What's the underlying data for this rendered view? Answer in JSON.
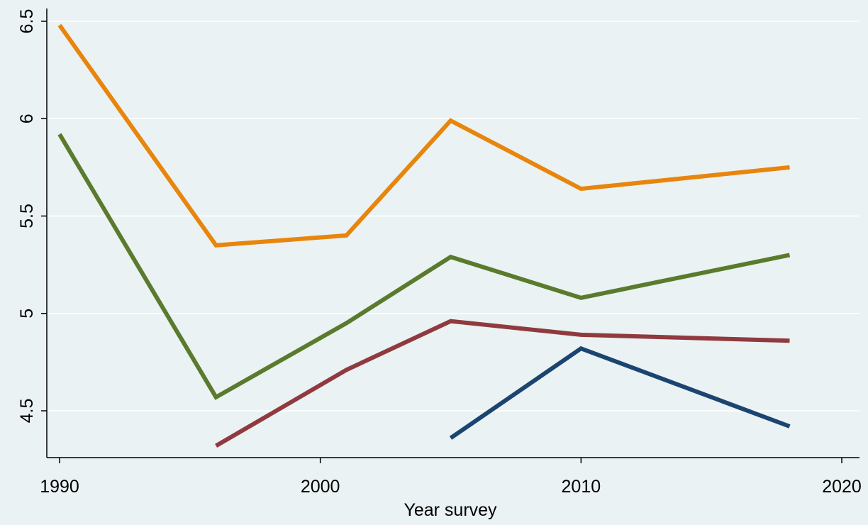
{
  "chart_data": {
    "type": "line",
    "title": "",
    "xlabel": "Year survey",
    "ylabel": "",
    "xlim": [
      1990,
      2020
    ],
    "ylim": [
      4.3,
      6.55
    ],
    "x_ticks": [
      1990,
      2000,
      2010,
      2020
    ],
    "y_ticks": [
      4.5,
      5,
      5.5,
      6,
      6.5
    ],
    "x_tick_labels": [
      "1990",
      "2000",
      "2010",
      "2020"
    ],
    "y_tick_labels": [
      "4.5",
      "5",
      "5.5",
      "6",
      "6.5"
    ],
    "grid": "horizontal",
    "legend": "none",
    "series": [
      {
        "color": "#e8850c",
        "x": [
          1990,
          1996,
          2001,
          2005,
          2010,
          2018
        ],
        "y": [
          6.48,
          5.35,
          5.4,
          5.99,
          5.64,
          5.75
        ]
      },
      {
        "color": "#5a7a2d",
        "x": [
          1990,
          1996,
          2001,
          2005,
          2010,
          2018
        ],
        "y": [
          5.92,
          4.57,
          4.95,
          5.29,
          5.08,
          5.3
        ]
      },
      {
        "color": "#903a3f",
        "x": [
          1996,
          2001,
          2005,
          2010,
          2018
        ],
        "y": [
          4.32,
          4.71,
          4.96,
          4.89,
          4.86
        ]
      },
      {
        "color": "#1b4470",
        "x": [
          2005,
          2010,
          2018
        ],
        "y": [
          4.36,
          4.82,
          4.42
        ]
      }
    ]
  }
}
